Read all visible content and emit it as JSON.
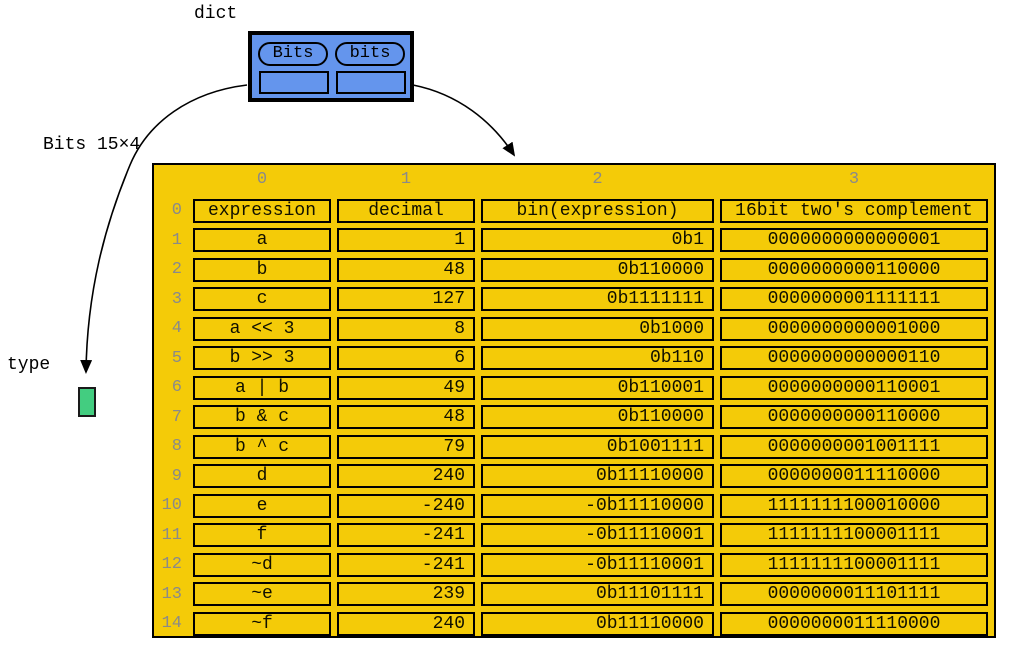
{
  "labels": {
    "dict_type": "dict",
    "array_ref": "Bits 15×4",
    "type_ref": "type"
  },
  "dict_node": {
    "keys": [
      "Bits",
      "bits"
    ]
  },
  "table": {
    "col_indices": [
      "0",
      "1",
      "2",
      "3"
    ],
    "rows": [
      {
        "index": "0",
        "cells": [
          "expression",
          "decimal",
          "bin(expression)",
          "16bit two's complement"
        ]
      },
      {
        "index": "1",
        "cells": [
          "a",
          "1",
          "0b1",
          "0000000000000001"
        ]
      },
      {
        "index": "2",
        "cells": [
          "b",
          "48",
          "0b110000",
          "0000000000110000"
        ]
      },
      {
        "index": "3",
        "cells": [
          "c",
          "127",
          "0b1111111",
          "0000000001111111"
        ]
      },
      {
        "index": "4",
        "cells": [
          "a << 3",
          "8",
          "0b1000",
          "0000000000001000"
        ]
      },
      {
        "index": "5",
        "cells": [
          "b >> 3",
          "6",
          "0b110",
          "0000000000000110"
        ]
      },
      {
        "index": "6",
        "cells": [
          "a | b",
          "49",
          "0b110001",
          "0000000000110001"
        ]
      },
      {
        "index": "7",
        "cells": [
          "b & c",
          "48",
          "0b110000",
          "0000000000110000"
        ]
      },
      {
        "index": "8",
        "cells": [
          "b ^ c",
          "79",
          "0b1001111",
          "0000000001001111"
        ]
      },
      {
        "index": "9",
        "cells": [
          "d",
          "240",
          "0b11110000",
          "0000000011110000"
        ]
      },
      {
        "index": "10",
        "cells": [
          "e",
          "-240",
          "-0b11110000",
          "1111111100010000"
        ]
      },
      {
        "index": "11",
        "cells": [
          "f",
          "-241",
          "-0b11110001",
          "1111111100001111"
        ]
      },
      {
        "index": "12",
        "cells": [
          "~d",
          "-241",
          "-0b11110001",
          "1111111100001111"
        ]
      },
      {
        "index": "13",
        "cells": [
          "~e",
          "239",
          "0b11101111",
          "0000000011101111"
        ]
      },
      {
        "index": "14",
        "cells": [
          "~f",
          "240",
          "0b11110000",
          "0000000011110000"
        ]
      }
    ]
  },
  "colors": {
    "node_blue": "#6495ED",
    "panel_gold": "#F4CB08",
    "type_green": "#43CD80",
    "index_gray": "#8a8a8a",
    "line_black": "#000000"
  }
}
